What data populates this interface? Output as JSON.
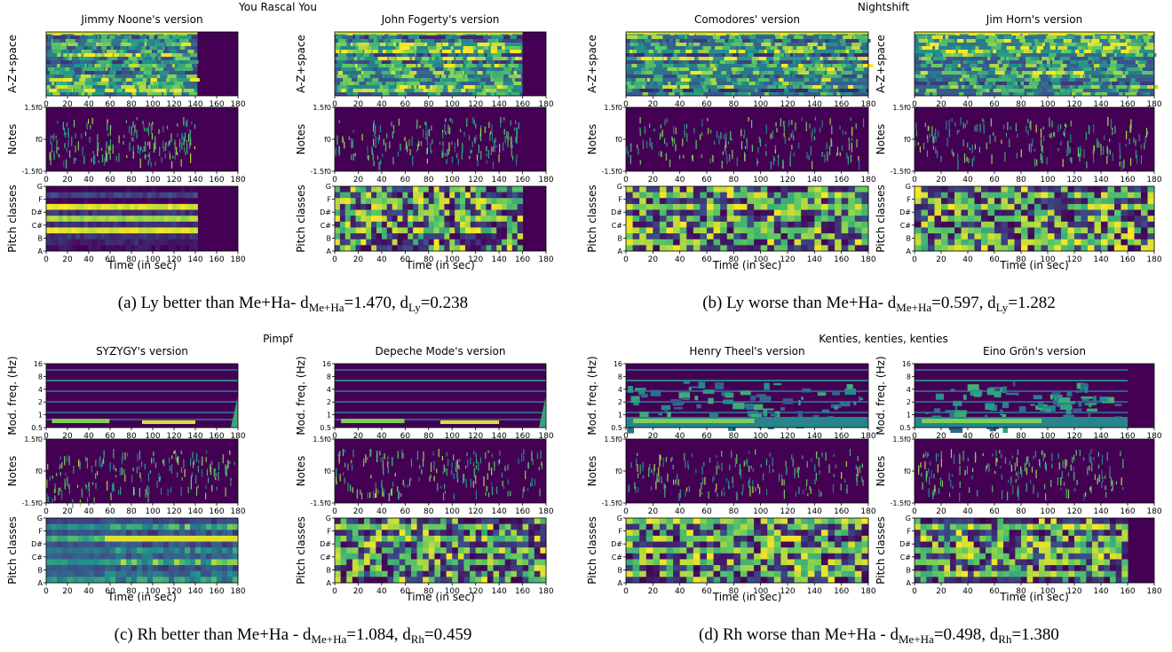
{
  "figure": {
    "captions": [
      {
        "label": "(a) Ly better than Me+Ha- d",
        "s1": "Me+Ha",
        "v1": "=1.470, d",
        "s2": "Ly",
        "v2": "=0.238"
      },
      {
        "label": "(b) Ly worse than Me+Ha- d",
        "s1": "Me+Ha",
        "v1": "=0.597, d",
        "s2": "Ly",
        "v2": "=1.282"
      },
      {
        "label": "(c) Rh better than Me+Ha - d",
        "s1": "Me+Ha",
        "v1": "=1.084, d",
        "s2": "Rh",
        "v2": "=0.459"
      },
      {
        "label": "(d) Rh worse than Me+Ha - d",
        "s1": "Me+Ha",
        "v1": "=0.498, d",
        "s2": "Rh",
        "v2": "=1.380"
      }
    ]
  },
  "chart_data": [
    {
      "type": "heatmap",
      "song_title": "You Rascal You",
      "top_row_type": "lyrics",
      "colormap": "viridis",
      "versions": [
        {
          "title": "Jimmy Noone's version",
          "duration_sec": 142,
          "key_y": 130
        },
        {
          "title": "John Fogerty's version",
          "duration_sec": 160,
          "key_y": 160
        }
      ],
      "rows": [
        {
          "ylabel": "A-Z+space",
          "yticks": []
        },
        {
          "ylabel": "Notes",
          "yticks": [
            "1.5f0",
            "f0",
            "-1.5f0"
          ]
        },
        {
          "ylabel": "Pitch classes",
          "yticks": [
            "G",
            "F",
            "D#",
            "C#",
            "B",
            "A"
          ]
        }
      ],
      "pitch_pattern": [
        {
          "level": [
            0,
            0.2,
            0,
            0.95,
            0.15,
            0.85,
            0.15,
            0.95,
            0.15,
            0.1,
            0.05
          ],
          "mode": "steady"
        },
        {
          "level": [
            0.5,
            0.3,
            0.8,
            0.4,
            0.5,
            0.8,
            0.35,
            0.7,
            0.4,
            0.35,
            0.6
          ],
          "mode": "blocks"
        }
      ],
      "xticks": [
        0,
        20,
        40,
        60,
        80,
        100,
        120,
        140,
        160,
        180
      ],
      "xlabel": "Time (in sec)",
      "xlim": [
        0,
        180
      ]
    },
    {
      "type": "heatmap",
      "song_title": "Nightshift",
      "top_row_type": "lyrics",
      "colormap": "viridis",
      "versions": [
        {
          "title": "Comodores' version",
          "duration_sec": 180,
          "key_y": 200
        },
        {
          "title": "Jim Horn's version",
          "duration_sec": 180,
          "key_y": 210
        }
      ],
      "rows": [
        {
          "ylabel": "A-Z+space",
          "yticks": []
        },
        {
          "ylabel": "Notes",
          "yticks": [
            "1.5f0",
            "f0",
            "-1.5f0"
          ]
        },
        {
          "ylabel": "Pitch classes",
          "yticks": [
            "G",
            "F",
            "D#",
            "C#",
            "B",
            "A"
          ]
        }
      ],
      "pitch_pattern": [
        {
          "level": [
            0.4,
            0.8,
            0.5,
            0.9,
            0.4,
            0.6,
            0.4,
            0.75,
            0.45,
            0.6,
            0.35
          ],
          "mode": "blocks"
        },
        {
          "level": [
            0.3,
            0.75,
            0.5,
            0.7,
            0.45,
            0.75,
            0.4,
            0.7,
            0.5,
            0.75,
            0.7
          ],
          "mode": "blocks"
        }
      ],
      "xticks": [
        0,
        20,
        40,
        60,
        80,
        100,
        120,
        140,
        160,
        180
      ],
      "xlabel": "Time (in sec)",
      "xlim": [
        0,
        180
      ]
    },
    {
      "type": "heatmap",
      "song_title": "Pimpf",
      "top_row_type": "rhythm",
      "colormap": "viridis",
      "versions": [
        {
          "title": "SYZYGY's version",
          "duration_sec": 180,
          "key_y": 300
        },
        {
          "title": "Depeche Mode's version",
          "duration_sec": 180,
          "key_y": 310
        }
      ],
      "rows": [
        {
          "ylabel": "Mod. freq. (Hz)",
          "yticks": [
            "16",
            "8",
            "4",
            "2",
            "1",
            "0.5"
          ]
        },
        {
          "ylabel": "Notes",
          "yticks": [
            "1.5f0",
            "f0",
            "-1.5f0"
          ]
        },
        {
          "ylabel": "Pitch classes",
          "yticks": [
            "G",
            "F",
            "D#",
            "C#",
            "B",
            "A"
          ]
        }
      ],
      "pitch_pattern": [
        {
          "level": [
            0.25,
            0.7,
            0.3,
            0.95,
            0.3,
            0.55,
            0.35,
            0.75,
            0.3,
            0.45,
            0.6
          ],
          "mode": "split"
        },
        {
          "level": [
            0.3,
            0.7,
            0.4,
            0.75,
            0.4,
            0.7,
            0.4,
            0.75,
            0.4,
            0.6,
            0.4
          ],
          "mode": "blocks"
        }
      ],
      "xticks": [
        0,
        20,
        40,
        60,
        80,
        100,
        120,
        140,
        160,
        180
      ],
      "xlabel": "Time (in sec)",
      "xlim": [
        0,
        180
      ]
    },
    {
      "type": "heatmap",
      "song_title": "Kenties, kenties, kenties",
      "top_row_type": "rhythm",
      "colormap": "viridis",
      "versions": [
        {
          "title": "Henry Theel's version",
          "duration_sec": 180,
          "key_y": 400
        },
        {
          "title": "Eino Grön's version",
          "duration_sec": 160,
          "key_y": 410
        }
      ],
      "rows": [
        {
          "ylabel": "Mod. freq. (Hz)",
          "yticks": [
            "16",
            "8",
            "4",
            "2",
            "1",
            "0.5"
          ]
        },
        {
          "ylabel": "Notes",
          "yticks": [
            "1.5f0",
            "f0",
            "-1.5f0"
          ]
        },
        {
          "ylabel": "Pitch classes",
          "yticks": [
            "G",
            "F",
            "D#",
            "C#",
            "B",
            "A"
          ]
        }
      ],
      "pitch_pattern": [
        {
          "level": [
            0.95,
            0.65,
            0.5,
            0.7,
            0.4,
            0.85,
            0.4,
            0.75,
            0.45,
            0.6,
            0.3
          ],
          "mode": "blocks"
        },
        {
          "level": [
            0.15,
            0.9,
            0.3,
            0.65,
            0.35,
            0.85,
            0.4,
            0.7,
            0.3,
            0.85,
            0.25
          ],
          "mode": "blocks"
        }
      ],
      "xticks": [
        0,
        20,
        40,
        60,
        80,
        100,
        120,
        140,
        160,
        180
      ],
      "xlabel": "Time (in sec)",
      "xlim": [
        0,
        180
      ]
    }
  ]
}
